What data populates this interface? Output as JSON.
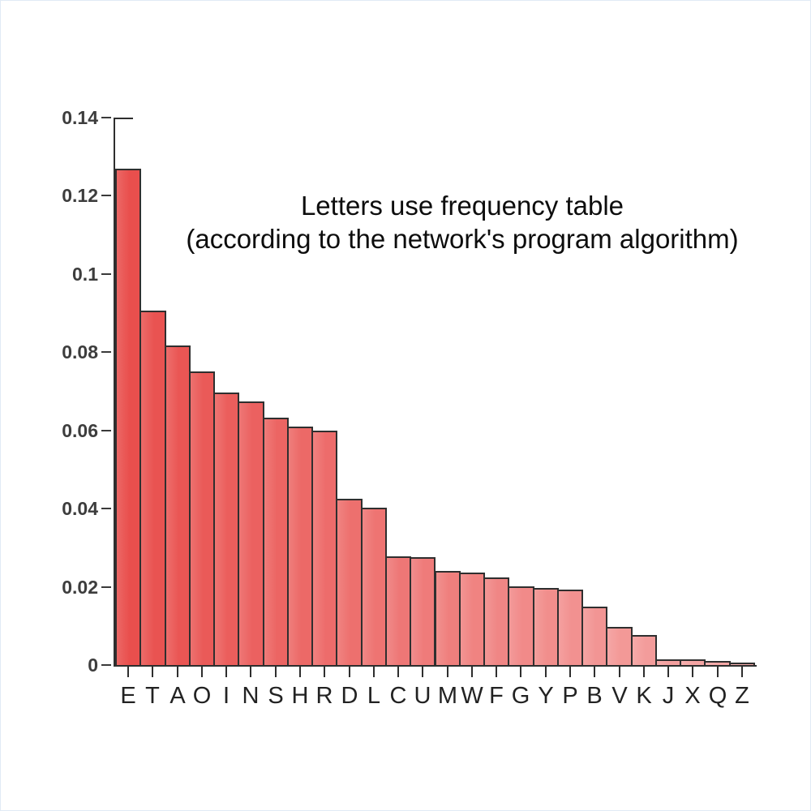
{
  "chart_data": {
    "type": "bar",
    "title_lines": [
      "Letters use frequency table",
      "(according to the network's program algorithm)"
    ],
    "title": "Letters use frequency table (according to the network's program algorithm)",
    "xlabel": "",
    "ylabel": "",
    "categories": [
      "E",
      "T",
      "A",
      "O",
      "I",
      "N",
      "S",
      "H",
      "R",
      "D",
      "L",
      "C",
      "U",
      "M",
      "W",
      "F",
      "G",
      "Y",
      "P",
      "B",
      "V",
      "K",
      "J",
      "X",
      "Q",
      "Z"
    ],
    "values": [
      0.127,
      0.0906,
      0.0817,
      0.0751,
      0.0697,
      0.0675,
      0.0633,
      0.0609,
      0.0599,
      0.0425,
      0.0403,
      0.0278,
      0.0276,
      0.0241,
      0.0236,
      0.0223,
      0.0202,
      0.0197,
      0.0193,
      0.0149,
      0.0098,
      0.0077,
      0.0015,
      0.0015,
      0.001,
      0.0007
    ],
    "ylim": [
      0,
      0.14
    ],
    "yticks": [
      0,
      0.02,
      0.04,
      0.06,
      0.08,
      0.1,
      0.12,
      0.14
    ],
    "ytick_labels": [
      "0",
      "0.02",
      "0.04",
      "0.06",
      "0.08",
      "0.1",
      "0.12",
      "0.14"
    ],
    "grid": false,
    "legend": null,
    "colors": {
      "bar_start": "#e94f4d",
      "bar_end": "#f5abaa",
      "bar_border": "#2f2f2f",
      "axis": "#2e2e2e",
      "tick_label": "#3d3d3d",
      "title_text": "#0d0d0d",
      "background": "#ffffff"
    }
  }
}
